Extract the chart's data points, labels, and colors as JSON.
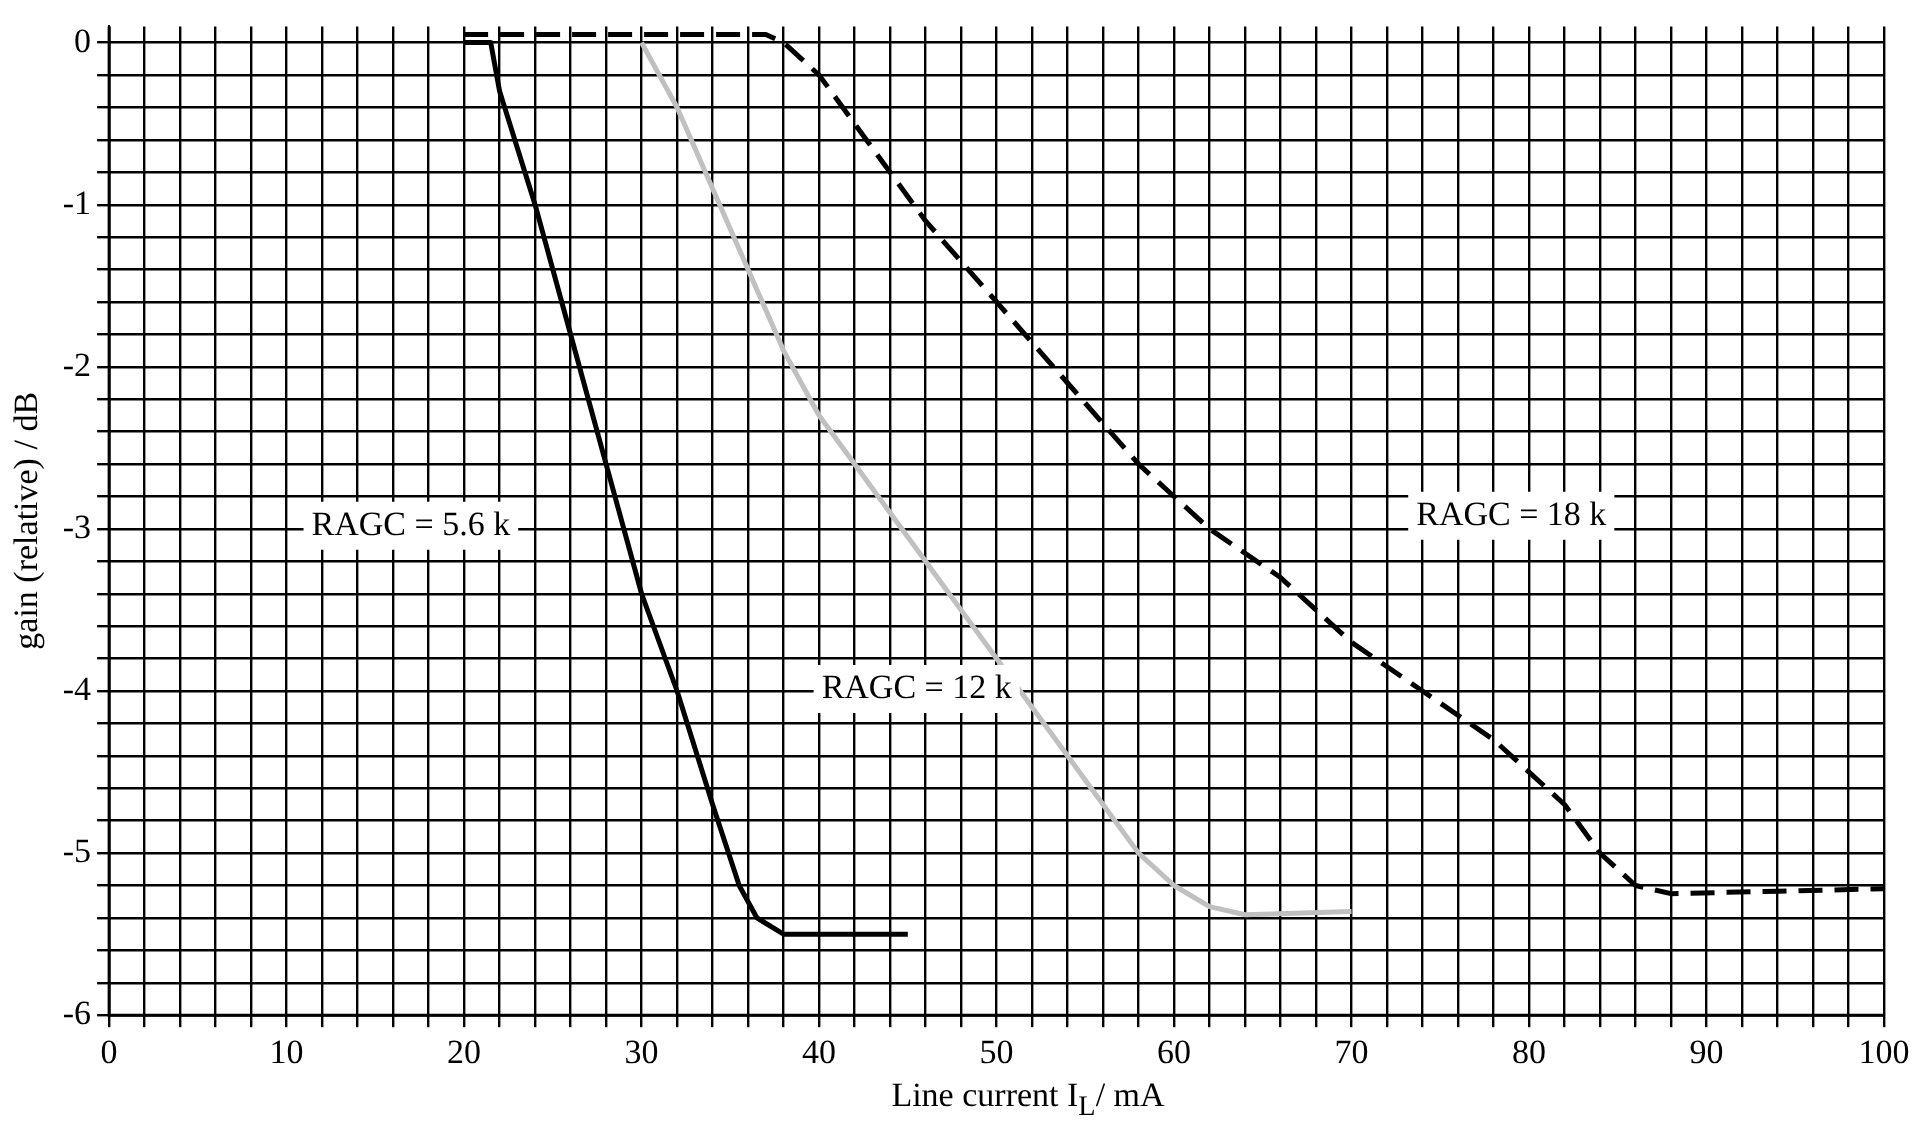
{
  "chart_data": {
    "type": "line",
    "xlabel": "Line current I$_{L}$/ mA",
    "ylabel": "gain (relative) / dB",
    "xlim": [
      0,
      100
    ],
    "ylim": [
      -6,
      0.1
    ],
    "xticks": [
      0,
      {
        "value": 2,
        "label": null
      },
      {
        "value": 4,
        "label": null
      },
      {
        "value": 6,
        "label": null
      },
      {
        "value": 8,
        "label": null
      },
      10,
      {
        "value": 12,
        "label": null
      },
      {
        "value": 14,
        "label": null
      },
      {
        "value": 16,
        "label": null
      },
      {
        "value": 18,
        "label": null
      },
      20,
      {
        "value": 22,
        "label": null
      },
      {
        "value": 24,
        "label": null
      },
      {
        "value": 26,
        "label": null
      },
      {
        "value": 28,
        "label": null
      },
      30,
      {
        "value": 32,
        "label": null
      },
      {
        "value": 34,
        "label": null
      },
      {
        "value": 36,
        "label": null
      },
      {
        "value": 38,
        "label": null
      },
      40,
      {
        "value": 42,
        "label": null
      },
      {
        "value": 44,
        "label": null
      },
      {
        "value": 46,
        "label": null
      },
      {
        "value": 48,
        "label": null
      },
      50,
      {
        "value": 52,
        "label": null
      },
      {
        "value": 54,
        "label": null
      },
      {
        "value": 56,
        "label": null
      },
      {
        "value": 58,
        "label": null
      },
      60,
      {
        "value": 62,
        "label": null
      },
      {
        "value": 64,
        "label": null
      },
      {
        "value": 66,
        "label": null
      },
      {
        "value": 68,
        "label": null
      },
      70,
      {
        "value": 72,
        "label": null
      },
      {
        "value": 74,
        "label": null
      },
      {
        "value": 76,
        "label": null
      },
      {
        "value": 78,
        "label": null
      },
      80,
      {
        "value": 82,
        "label": null
      },
      {
        "value": 84,
        "label": null
      },
      {
        "value": 86,
        "label": null
      },
      {
        "value": 88,
        "label": null
      },
      90,
      {
        "value": 92,
        "label": null
      },
      {
        "value": 94,
        "label": null
      },
      {
        "value": 96,
        "label": null
      },
      {
        "value": 98,
        "label": null
      },
      100
    ],
    "yticks": [
      -6,
      {
        "value": -5.8,
        "label": null
      },
      {
        "value": -5.6,
        "label": null
      },
      {
        "value": -5.4,
        "label": null
      },
      {
        "value": -5.2,
        "label": null
      },
      -5,
      {
        "value": -4.8,
        "label": null
      },
      {
        "value": -4.6,
        "label": null
      },
      {
        "value": -4.4,
        "label": null
      },
      {
        "value": -4.2,
        "label": null
      },
      -4,
      {
        "value": -3.8,
        "label": null
      },
      {
        "value": -3.6,
        "label": null
      },
      {
        "value": -3.4,
        "label": null
      },
      {
        "value": -3.2,
        "label": null
      },
      -3,
      {
        "value": -2.8,
        "label": null
      },
      {
        "value": -2.6,
        "label": null
      },
      {
        "value": -2.4,
        "label": null
      },
      {
        "value": -2.2,
        "label": null
      },
      -2,
      {
        "value": -1.8,
        "label": null
      },
      {
        "value": -1.6,
        "label": null
      },
      {
        "value": -1.4,
        "label": null
      },
      {
        "value": -1.2,
        "label": null
      },
      -1,
      {
        "value": -0.8,
        "label": null
      },
      {
        "value": -0.6,
        "label": null
      },
      {
        "value": -0.4,
        "label": null
      },
      {
        "value": -0.2,
        "label": null
      },
      0
    ],
    "grid": true,
    "legend": false,
    "marker": "none",
    "series": [
      {
        "color": "#000000",
        "line_style": "solid",
        "x": [
          20,
          21.5,
          22,
          24,
          25.5,
          28,
          30,
          32,
          34,
          35.5,
          36.5,
          38,
          45
        ],
        "values": [
          0,
          0,
          -0.3,
          -1.0,
          -1.6,
          -2.6,
          -3.4,
          -4.0,
          -4.7,
          -5.2,
          -5.4,
          -5.5,
          -5.5
        ]
      },
      {
        "color": "#c0c0c0",
        "line_style": "solid",
        "x": [
          30,
          32,
          34,
          36,
          38,
          40,
          42,
          44,
          46,
          48,
          50,
          52,
          54,
          56,
          58,
          60,
          62,
          64,
          70
        ],
        "values": [
          0,
          -0.4,
          -0.9,
          -1.4,
          -1.9,
          -2.3,
          -2.6,
          -2.9,
          -3.2,
          -3.5,
          -3.8,
          -4.1,
          -4.4,
          -4.7,
          -5.0,
          -5.2,
          -5.33,
          -5.38,
          -5.36
        ]
      },
      {
        "color": "#000000",
        "line_style": "dashed",
        "x": [
          20,
          37,
          38,
          40,
          42,
          44,
          46,
          50,
          54,
          58,
          60,
          62,
          66,
          70,
          74,
          78,
          82,
          84,
          86,
          88,
          100
        ],
        "values": [
          0.05,
          0.05,
          0,
          -0.2,
          -0.5,
          -0.8,
          -1.1,
          -1.6,
          -2.1,
          -2.6,
          -2.8,
          -3.0,
          -3.3,
          -3.7,
          -4.0,
          -4.3,
          -4.7,
          -5.0,
          -5.2,
          -5.25,
          -5.22
        ]
      }
    ],
    "annotations": [
      "RAGC = 5.6 k",
      "RAGC = 12 k",
      "RAGC = 18 k"
    ]
  }
}
